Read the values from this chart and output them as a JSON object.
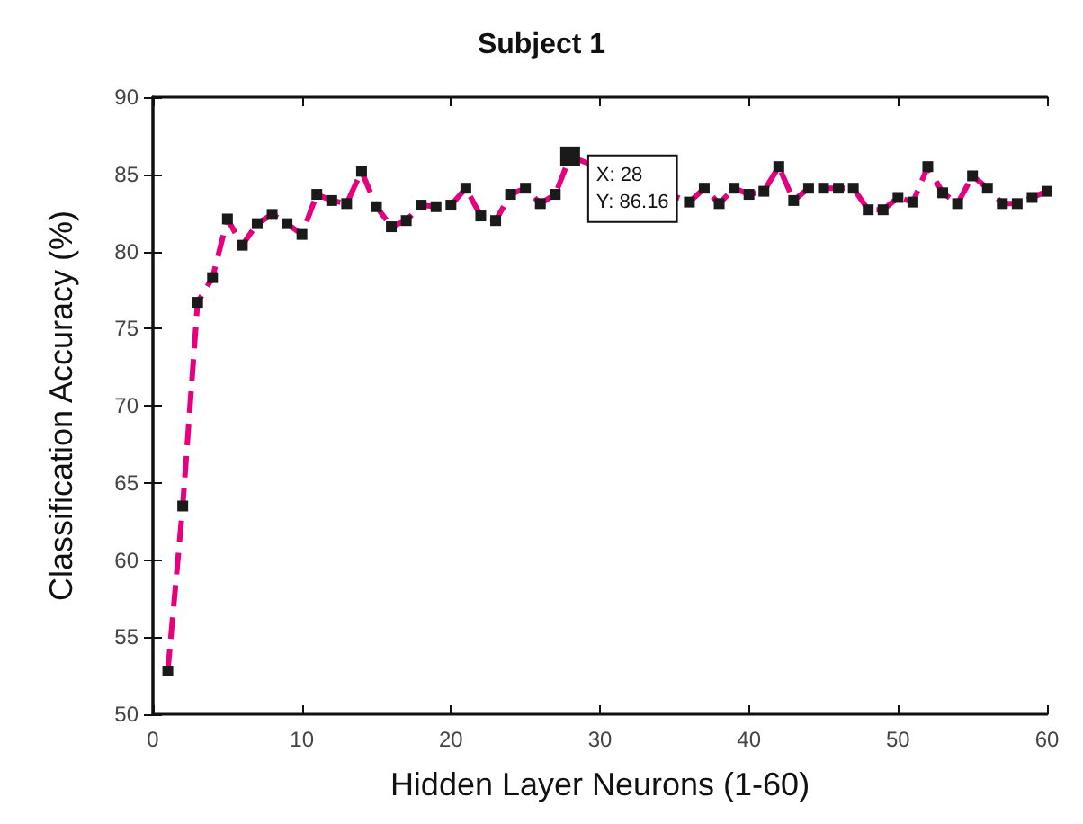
{
  "chart_data": {
    "type": "line",
    "title": "Subject 1",
    "xlabel": "Hidden Layer Neurons (1-60)",
    "ylabel": "Classification Accuracy (%)",
    "x": [
      1,
      2,
      3,
      4,
      5,
      6,
      7,
      8,
      9,
      10,
      11,
      12,
      13,
      14,
      15,
      16,
      17,
      18,
      19,
      20,
      21,
      22,
      23,
      24,
      25,
      26,
      27,
      28,
      29,
      30,
      31,
      32,
      33,
      34,
      35,
      36,
      37,
      38,
      39,
      40,
      41,
      42,
      43,
      44,
      45,
      46,
      47,
      48,
      49,
      50,
      51,
      52,
      53,
      54,
      55,
      56,
      57,
      58,
      59,
      60
    ],
    "series": [
      {
        "color": "#e6007e",
        "values": [
          52.8,
          63.5,
          76.7,
          78.3,
          82.1,
          80.4,
          81.8,
          82.4,
          81.8,
          81.1,
          83.7,
          83.3,
          83.1,
          85.2,
          82.9,
          81.6,
          82.0,
          83.0,
          82.9,
          83.0,
          84.1,
          82.3,
          82.0,
          83.7,
          84.1,
          83.1,
          83.7,
          86.16,
          null,
          null,
          null,
          null,
          null,
          null,
          null,
          83.2,
          84.1,
          83.1,
          84.1,
          83.7,
          83.9,
          85.5,
          83.3,
          84.1,
          84.1,
          84.1,
          84.1,
          82.7,
          82.7,
          83.5,
          83.2,
          85.5,
          83.8,
          83.1,
          84.9,
          84.1,
          83.1,
          83.1,
          83.5,
          83.9
        ]
      }
    ],
    "xlim": [
      0,
      60
    ],
    "xticks": [
      0,
      10,
      20,
      30,
      40,
      50,
      60
    ],
    "ylim": [
      50,
      90
    ],
    "yticks": [
      50,
      55,
      60,
      65,
      70,
      75,
      80,
      85,
      90
    ],
    "annotations": [
      {
        "text": "X: 28\nY: 86.16",
        "x": 28,
        "y": 86.16
      }
    ],
    "grid": false,
    "marker": "square",
    "line_style": "dashed"
  }
}
